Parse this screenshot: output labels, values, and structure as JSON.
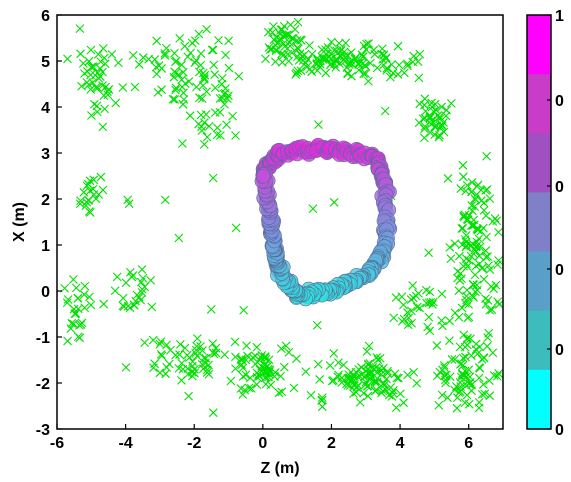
{
  "chart_data": {
    "type": "scatter",
    "xlabel": "Z (m)",
    "ylabel": "X (m)",
    "xlim": [
      -6,
      7
    ],
    "ylim": [
      -3,
      6
    ],
    "xticks": [
      "-6",
      "-4",
      "-2",
      "0",
      "2",
      "4",
      "6"
    ],
    "yticks": [
      "-3",
      "-2",
      "-1",
      "0",
      "1",
      "2",
      "3",
      "4",
      "5",
      "6"
    ],
    "grid": false,
    "colorbar": {
      "tick_labels": [
        "1",
        "0",
        "0",
        "0",
        "0"
      ],
      "colors": [
        "#ff00ff",
        "#c83cc8",
        "#a050c0",
        "#8080c8",
        "#5a9fc8",
        "#3cbcbc",
        "#00ffff"
      ]
    },
    "series": [
      {
        "marker": "x",
        "color": "#00e000",
        "clusters": [
          {
            "center": [
              -4.9,
              4.6
            ],
            "spread": [
              0.5,
              0.8
            ],
            "count": 45
          },
          {
            "center": [
              -2.2,
              4.8
            ],
            "spread": [
              1.2,
              0.6
            ],
            "count": 70
          },
          {
            "center": [
              -1.1,
              4.2
            ],
            "spread": [
              0.2,
              0.2
            ],
            "count": 8
          },
          {
            "center": [
              0.7,
              5.4
            ],
            "spread": [
              0.5,
              0.3
            ],
            "count": 45
          },
          {
            "center": [
              2.5,
              5.0
            ],
            "spread": [
              1.6,
              0.3
            ],
            "count": 120
          },
          {
            "center": [
              4.9,
              3.7
            ],
            "spread": [
              0.4,
              0.4
            ],
            "count": 40
          },
          {
            "center": [
              -5.1,
              2.0
            ],
            "spread": [
              0.4,
              0.5
            ],
            "count": 20
          },
          {
            "center": [
              -1.4,
              3.5
            ],
            "spread": [
              0.4,
              0.4
            ],
            "count": 15
          },
          {
            "center": [
              -5.4,
              -0.4
            ],
            "spread": [
              0.4,
              0.6
            ],
            "count": 25
          },
          {
            "center": [
              -3.8,
              0.0
            ],
            "spread": [
              0.6,
              0.4
            ],
            "count": 25
          },
          {
            "center": [
              6.2,
              0.8
            ],
            "spread": [
              0.5,
              1.8
            ],
            "count": 130
          },
          {
            "center": [
              4.6,
              -0.4
            ],
            "spread": [
              0.7,
              0.5
            ],
            "count": 30
          },
          {
            "center": [
              -2.0,
              -1.5
            ],
            "spread": [
              1.2,
              0.4
            ],
            "count": 55
          },
          {
            "center": [
              0.0,
              -1.7
            ],
            "spread": [
              0.8,
              0.5
            ],
            "count": 60
          },
          {
            "center": [
              3.0,
              -1.9
            ],
            "spread": [
              1.2,
              0.4
            ],
            "count": 100
          },
          {
            "center": [
              6.0,
              -1.8
            ],
            "spread": [
              0.7,
              0.6
            ],
            "count": 70
          },
          {
            "center": [
              0.0,
              0.0
            ],
            "spread": [
              6.0,
              4.5
            ],
            "count": 55
          }
        ]
      },
      {
        "marker": "o",
        "colormap": "cool",
        "shape": "closed-ring",
        "vertices": [
          [
            0.0,
            2.6
          ],
          [
            0.5,
            3.0
          ],
          [
            2.0,
            3.1
          ],
          [
            3.3,
            2.9
          ],
          [
            3.6,
            2.2
          ],
          [
            3.6,
            1.0
          ],
          [
            3.1,
            0.4
          ],
          [
            2.0,
            0.0
          ],
          [
            1.0,
            -0.1
          ],
          [
            0.5,
            0.4
          ],
          [
            0.3,
            1.0
          ],
          [
            0.2,
            1.8
          ],
          [
            0.0,
            2.6
          ]
        ]
      }
    ]
  }
}
